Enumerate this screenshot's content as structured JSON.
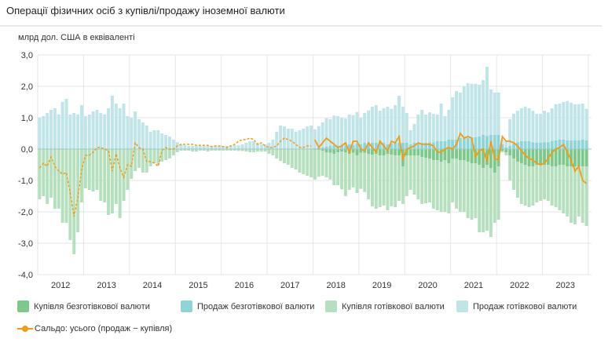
{
  "title": "Операції фізичних осіб з купівлі/продажу іноземної валюти",
  "unit_label": "млрд дол. США в еквіваленті",
  "legend": [
    {
      "key": "noncash_buy",
      "label": "Купівля безготівкової валюти",
      "color": "#7dc98c"
    },
    {
      "key": "noncash_sell",
      "label": "Продаж безготівкової валюти",
      "color": "#8dd5d9"
    },
    {
      "key": "cash_buy",
      "label": "Купівля готівкової валюти",
      "color": "#b5e0bd"
    },
    {
      "key": "cash_sell",
      "label": "Продаж готівкової валюти",
      "color": "#bfe5e9"
    },
    {
      "key": "balance",
      "label": "Сальдо: усього (продаж − купівля)",
      "color": "#f39c12"
    }
  ],
  "chart_data": {
    "type": "bar",
    "subtype": "stacked bar + line",
    "title": "Операції фізичних осіб з купівлі/продажу іноземної валюти",
    "ylabel": "млрд дол. США в еквіваленті",
    "xlabel": "",
    "ylim": [
      -4.0,
      3.0
    ],
    "yticks": [
      "3,0",
      "2,0",
      "1,0",
      "0,0",
      "-1,0",
      "-2,0",
      "-3,0",
      "-4,0"
    ],
    "ytick_values": [
      3,
      2,
      1,
      0,
      -1,
      -2,
      -3,
      -4
    ],
    "x_years": [
      "2012",
      "2013",
      "2014",
      "2015",
      "2016",
      "2017",
      "2018",
      "2019",
      "2020",
      "2021",
      "2022",
      "2023"
    ],
    "frequency": "monthly",
    "grid": true,
    "legend_position": "bottom",
    "balance_dashed_until": "2017-12",
    "series": [
      {
        "name": "Продаж готівкової валюти",
        "key": "cash_sell",
        "values": [
          1.0,
          1.05,
          1.15,
          1.25,
          1.3,
          1.1,
          1.5,
          1.6,
          1.1,
          1.15,
          1.1,
          1.4,
          1.05,
          1.1,
          1.2,
          1.25,
          1.15,
          1.1,
          1.3,
          1.7,
          1.45,
          1.3,
          1.45,
          1.05,
          1.0,
          1.2,
          0.95,
          0.85,
          0.75,
          0.55,
          0.6,
          0.6,
          0.5,
          0.45,
          0.4,
          0.3,
          0.22,
          0.15,
          0.12,
          0.1,
          0.1,
          0.1,
          0.1,
          0.1,
          0.1,
          0.1,
          0.1,
          0.1,
          0.1,
          0.1,
          0.1,
          0.12,
          0.12,
          0.15,
          0.2,
          0.25,
          0.25,
          0.2,
          0.15,
          0.15,
          0.2,
          0.3,
          0.55,
          0.75,
          0.72,
          0.65,
          0.65,
          0.55,
          0.6,
          0.65,
          0.72,
          0.75,
          0.6,
          0.68,
          0.8,
          0.9,
          0.85,
          0.95,
          0.95,
          0.9,
          0.85,
          0.95,
          0.95,
          1.0,
          0.85,
          0.95,
          1.05,
          1.15,
          1.2,
          1.0,
          1.1,
          1.2,
          1.1,
          1.2,
          1.5,
          1.15,
          0.95,
          0.45,
          0.6,
          0.9,
          1.05,
          0.9,
          0.95,
          0.9,
          0.85,
          1.2,
          0.8,
          0.95,
          1.35,
          1.55,
          1.45,
          1.65,
          1.75,
          1.7,
          1.7,
          1.65,
          1.75,
          2.2,
          1.45,
          1.35,
          1.35,
          0.15,
          0.2,
          0.85,
          0.95,
          1.0,
          1.05,
          1.1,
          1.05,
          1.0,
          0.92,
          0.92,
          1.0,
          0.95,
          1.05,
          1.15,
          1.15,
          1.2,
          1.25,
          1.2,
          1.15,
          1.15,
          1.15,
          1.0
        ]
      },
      {
        "name": "Продаж безготівкової валюти",
        "key": "noncash_sell",
        "values": [
          0,
          0,
          0,
          0,
          0,
          0,
          0,
          0,
          0,
          0,
          0,
          0,
          0,
          0,
          0,
          0,
          0,
          0,
          0,
          0,
          0,
          0,
          0,
          0,
          0,
          0,
          0,
          0,
          0,
          0,
          0,
          0,
          0,
          0,
          0,
          0,
          0,
          0,
          0,
          0,
          0,
          0,
          0,
          0,
          0,
          0,
          0,
          0,
          0,
          0,
          0,
          0,
          0,
          0,
          0,
          0,
          0,
          0,
          0,
          0,
          0,
          0,
          0,
          0,
          0,
          0,
          0,
          0,
          0,
          0,
          0,
          0,
          0.03,
          0.05,
          0.05,
          0.08,
          0.1,
          0.12,
          0.1,
          0.1,
          0.12,
          0.15,
          0.13,
          0.18,
          0.15,
          0.2,
          0.18,
          0.2,
          0.2,
          0.22,
          0.2,
          0.15,
          0.18,
          0.2,
          0.2,
          0.2,
          0.2,
          0.15,
          0.2,
          0.2,
          0.2,
          0.2,
          0.22,
          0.22,
          0.25,
          0.25,
          0.25,
          0.3,
          0.3,
          0.3,
          0.35,
          0.35,
          0.35,
          0.38,
          0.38,
          0.4,
          0.45,
          0.42,
          0.45,
          0.45,
          0.45,
          0.15,
          0.05,
          0.1,
          0.18,
          0.22,
          0.25,
          0.25,
          0.25,
          0.22,
          0.2,
          0.2,
          0.22,
          0.22,
          0.25,
          0.28,
          0.3,
          0.3,
          0.28,
          0.28,
          0.28,
          0.28,
          0.3,
          0.28
        ]
      },
      {
        "name": "Купівля безготівкової валюти",
        "key": "noncash_buy",
        "values": [
          0,
          0,
          0,
          0,
          0,
          0,
          0,
          0,
          0,
          0,
          0,
          0,
          0,
          0,
          0,
          0,
          0,
          0,
          0,
          0,
          0,
          0,
          0,
          0,
          0,
          0,
          0,
          0,
          0,
          0,
          0,
          0,
          0,
          0,
          0,
          0,
          0,
          0,
          0,
          0,
          0,
          0,
          0,
          0,
          0,
          0,
          0,
          0,
          0,
          0,
          0,
          0,
          0,
          0,
          0,
          0,
          0,
          0,
          0,
          0,
          0,
          0,
          0,
          0,
          0,
          0,
          0,
          0,
          0,
          0,
          0,
          0,
          -0.02,
          -0.03,
          -0.05,
          -0.1,
          -0.12,
          -0.15,
          -0.1,
          -0.08,
          -0.1,
          -0.15,
          -0.12,
          -0.2,
          -0.12,
          -0.12,
          -0.15,
          -0.18,
          -0.15,
          -0.2,
          -0.2,
          -0.15,
          -0.18,
          -0.2,
          -0.2,
          -0.55,
          -0.2,
          -0.2,
          -0.2,
          -0.2,
          -0.25,
          -0.28,
          -0.3,
          -0.35,
          -0.35,
          -0.4,
          -0.35,
          -0.45,
          -0.3,
          -0.3,
          -0.35,
          -0.35,
          -0.4,
          -0.45,
          -0.45,
          -0.5,
          -0.6,
          -0.5,
          -0.6,
          -0.75,
          -0.55,
          -0.05,
          -0.1,
          -0.2,
          -0.3,
          -0.4,
          -0.45,
          -0.5,
          -0.55,
          -0.55,
          -0.5,
          -0.5,
          -0.5,
          -0.5,
          -0.55,
          -0.55,
          -0.5,
          -0.5,
          -0.55,
          -0.55,
          -0.55,
          -0.55,
          -0.55,
          -0.55
        ]
      },
      {
        "name": "Купівля готівкової валюти",
        "key": "cash_buy",
        "values": [
          -1.6,
          -1.5,
          -1.75,
          -1.55,
          -1.9,
          -1.9,
          -2.35,
          -2.35,
          -2.9,
          -3.35,
          -2.65,
          -1.7,
          -1.25,
          -1.3,
          -1.35,
          -1.3,
          -1.65,
          -1.7,
          -2.1,
          -2.05,
          -1.75,
          -2.2,
          -1.65,
          -1.3,
          -0.95,
          -0.7,
          -0.6,
          -0.75,
          -0.75,
          -0.55,
          -0.45,
          -0.5,
          -0.4,
          -0.35,
          -0.3,
          -0.2,
          -0.1,
          -0.05,
          -0.05,
          -0.05,
          -0.08,
          -0.08,
          -0.05,
          -0.05,
          -0.08,
          -0.05,
          -0.05,
          -0.05,
          -0.05,
          -0.05,
          -0.05,
          -0.05,
          -0.06,
          -0.06,
          -0.08,
          -0.1,
          -0.1,
          -0.08,
          -0.08,
          -0.08,
          -0.15,
          -0.2,
          -0.3,
          -0.38,
          -0.45,
          -0.5,
          -0.6,
          -0.65,
          -0.75,
          -0.8,
          -0.85,
          -0.9,
          -0.95,
          -0.85,
          -0.8,
          -0.8,
          -0.85,
          -1.0,
          -1.05,
          -1.2,
          -1.4,
          -1.15,
          -1.1,
          -1.2,
          -1.15,
          -1.25,
          -1.45,
          -1.65,
          -1.75,
          -1.65,
          -1.6,
          -1.8,
          -1.65,
          -1.65,
          -1.45,
          -1.2,
          -1.3,
          -1.1,
          -1.25,
          -1.4,
          -1.5,
          -1.45,
          -1.4,
          -1.55,
          -1.6,
          -1.6,
          -1.65,
          -1.6,
          -1.4,
          -1.6,
          -1.65,
          -1.65,
          -1.8,
          -1.8,
          -1.75,
          -2.15,
          -2.05,
          -2.1,
          -2.2,
          -1.6,
          -1.7,
          -0.05,
          -0.1,
          -0.8,
          -1.0,
          -1.15,
          -1.3,
          -1.3,
          -1.3,
          -1.25,
          -1.2,
          -1.15,
          -1.1,
          -1.15,
          -1.25,
          -1.3,
          -1.45,
          -1.55,
          -1.6,
          -1.8,
          -1.85,
          -1.6,
          -1.8,
          -1.9
        ]
      },
      {
        "name": "Сальдо: усього (продаж − купівля)",
        "key": "balance",
        "values": [
          -0.6,
          -0.45,
          -0.55,
          -0.25,
          -0.55,
          -0.7,
          -0.8,
          -0.75,
          -1.4,
          -2.15,
          -1.55,
          -0.65,
          -0.2,
          -0.2,
          -0.1,
          0.05,
          0.05,
          0.0,
          -0.05,
          -0.7,
          -0.15,
          -0.6,
          -0.9,
          -0.5,
          -0.55,
          0.2,
          0.05,
          0.0,
          -0.4,
          -0.4,
          -0.45,
          -0.55,
          -0.05,
          0.05,
          0.0,
          0.0,
          0.1,
          0.15,
          0.15,
          0.15,
          0.15,
          0.12,
          0.12,
          0.12,
          0.12,
          0.08,
          0.1,
          0.1,
          0.08,
          0.05,
          0.1,
          0.15,
          0.25,
          0.3,
          0.3,
          0.35,
          0.3,
          0.15,
          0.2,
          0.1,
          0.05,
          0.05,
          0.1,
          0.25,
          0.35,
          0.3,
          0.25,
          0.15,
          0.05,
          0.05,
          0.1,
          0.1,
          0.3,
          0.05,
          0.2,
          0.35,
          0.25,
          0.15,
          0.05,
          0.1,
          0.2,
          -0.1,
          0.25,
          0.25,
          0.0,
          -0.05,
          0.2,
          0.05,
          -0.1,
          0.25,
          0.1,
          -0.05,
          0.25,
          0.2,
          0.4,
          -0.35,
          0.0,
          0.05,
          0.1,
          0.2,
          0.15,
          0.15,
          0.15,
          0.1,
          -0.1,
          -0.1,
          0.0,
          0.05,
          0.0,
          0.15,
          0.5,
          0.35,
          0.4,
          0.35,
          -0.25,
          -0.05,
          0.0,
          -0.4,
          0.25,
          -0.3,
          -0.35,
          0.4,
          0.25,
          0.25,
          0.2,
          0.1,
          -0.05,
          -0.2,
          -0.3,
          -0.35,
          -0.45,
          -0.5,
          -0.45,
          -0.3,
          -0.1,
          0.0,
          0.05,
          0.15,
          -0.1,
          -0.35,
          -0.7,
          -0.55,
          -1.0,
          -1.1
        ]
      }
    ]
  }
}
